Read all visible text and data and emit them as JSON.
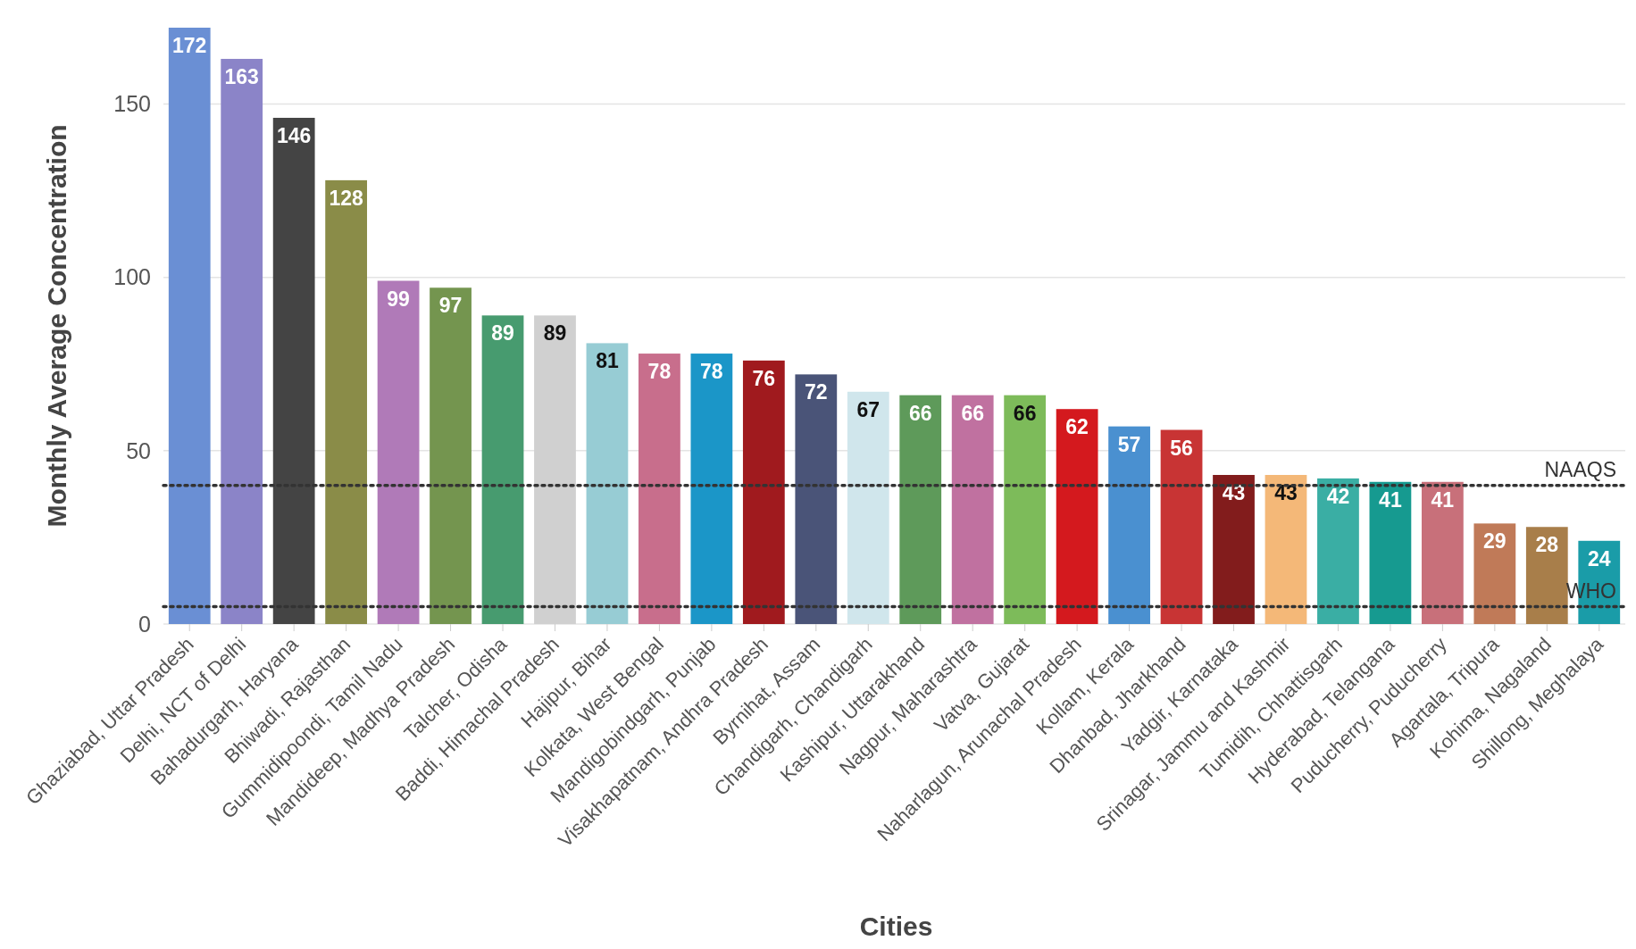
{
  "chart_data": {
    "type": "bar",
    "xlabel": "Cities",
    "ylabel": "Monthly Average Concentration",
    "categories": [
      "Ghaziabad, Uttar Pradesh",
      "Delhi, NCT of Delhi",
      "Bahadurgarh, Haryana",
      "Bhiwadi, Rajasthan",
      "Gummidipoondi, Tamil Nadu",
      "Mandideep, Madhya Pradesh",
      "Talcher, Odisha",
      "Baddi, Himachal Pradesh",
      "Hajipur, Bihar",
      "Kolkata, West Bengal",
      "Mandigobindgarh, Punjab",
      "Visakhapatnam, Andhra Pradesh",
      "Byrnihat, Assam",
      "Chandigarh, Chandigarh",
      "Kashipur, Uttarakhand",
      "Nagpur, Maharashtra",
      "Vatva, Gujarat",
      "Naharlagun, Arunachal Pradesh",
      "Kollam, Kerala",
      "Dhanbad, Jharkhand",
      "Yadgir, Karnataka",
      "Srinagar, Jammu and Kashmir",
      "Tumidih, Chhattisgarh",
      "Hyderabad, Telangana",
      "Puducherry, Puducherry",
      "Agartala, Tripura",
      "Kohima, Nagaland",
      "Shillong, Meghalaya"
    ],
    "values": [
      172,
      163,
      146,
      128,
      99,
      97,
      89,
      89,
      81,
      78,
      78,
      76,
      72,
      67,
      66,
      66,
      66,
      62,
      57,
      56,
      43,
      43,
      42,
      41,
      41,
      29,
      28,
      24
    ],
    "colors": [
      "#6a8fd4",
      "#8b84c8",
      "#444444",
      "#8a8c48",
      "#b07ab8",
      "#74954f",
      "#479b6f",
      "#d0d0d0",
      "#97ccd4",
      "#c86e8c",
      "#1b96c8",
      "#a01a1e",
      "#4a5478",
      "#d0e6ec",
      "#5e9a5a",
      "#c071a0",
      "#7dbb5a",
      "#d4191e",
      "#4a90d0",
      "#c83434",
      "#821c1c",
      "#f4b878",
      "#3aaea4",
      "#169a90",
      "#c8707a",
      "#c07a58",
      "#a87e4a",
      "#1a9ca8"
    ],
    "ylim": [
      0,
      172
    ],
    "yticks": [
      0,
      50,
      100,
      150
    ],
    "grid": "y",
    "data_labels": true,
    "ref_lines": [
      {
        "axis": "y",
        "value": 40,
        "label": "NAAQS",
        "line_style": "dotted"
      },
      {
        "axis": "y",
        "value": 5,
        "label": "WHO",
        "line_style": "dotted"
      }
    ]
  }
}
